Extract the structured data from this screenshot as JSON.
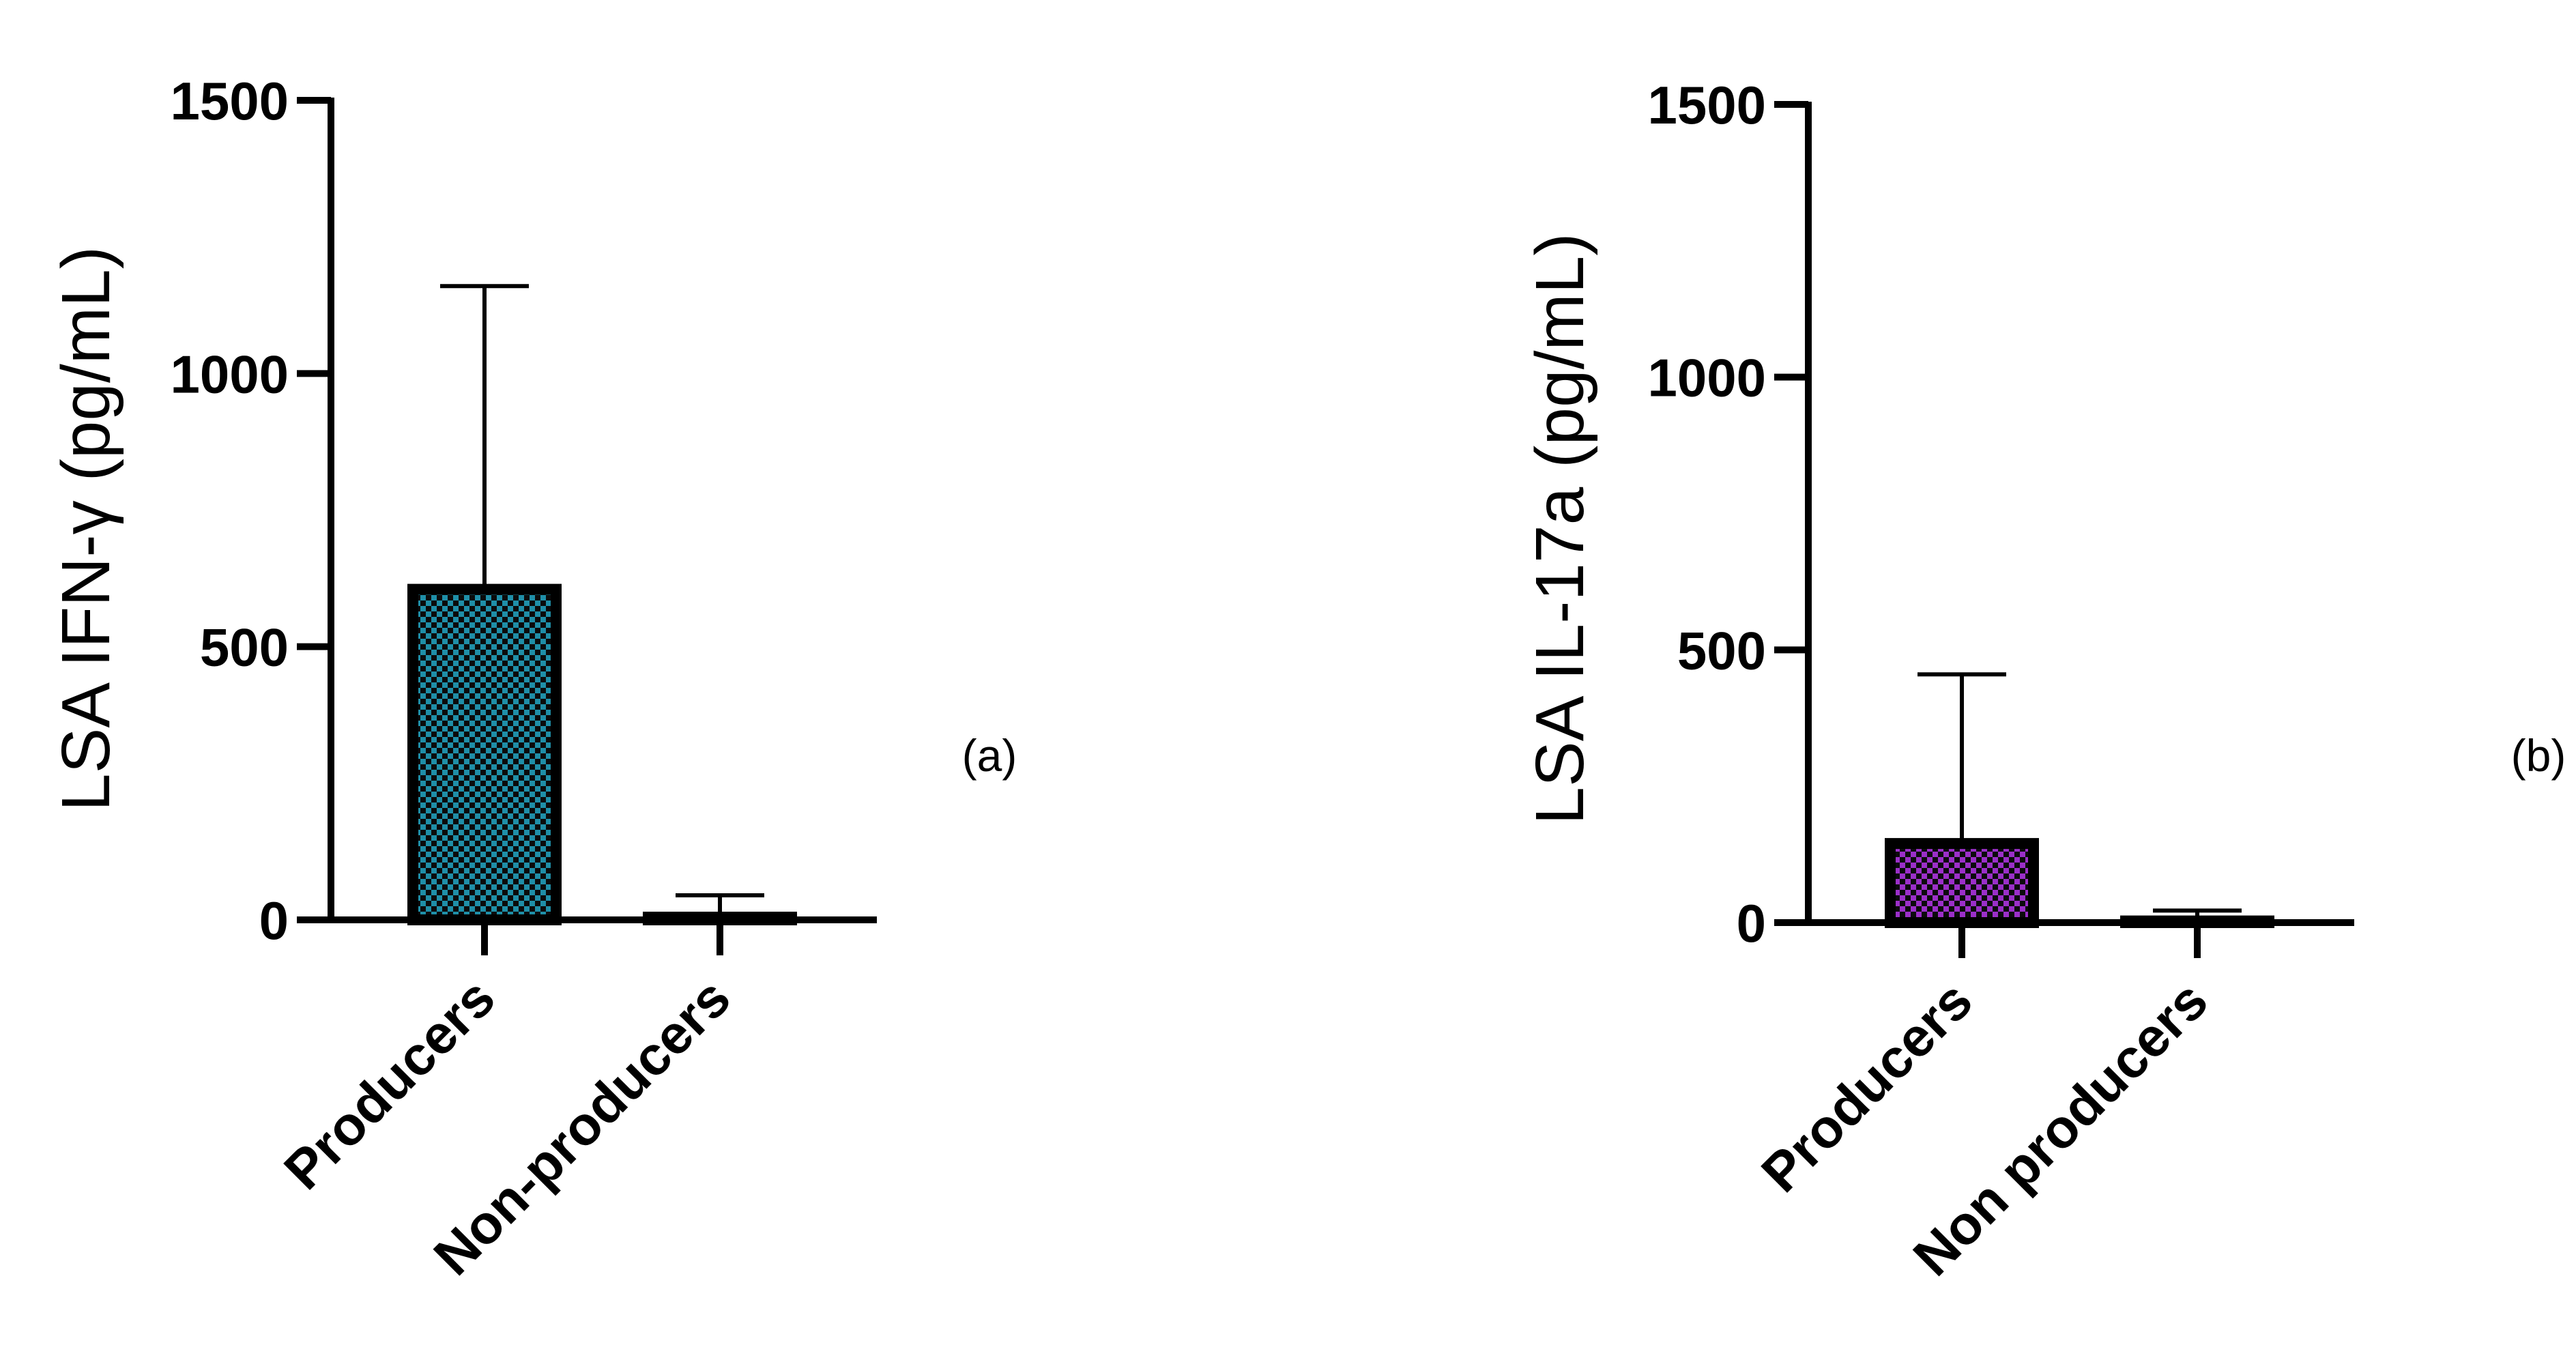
{
  "chart_data": [
    {
      "type": "bar",
      "panel_label": "(a)",
      "ylabel": "LSA IFN-γ (pg/mL)",
      "xlabel": "",
      "categories": [
        "Producers",
        "Non-producers"
      ],
      "values": [
        605,
        5
      ],
      "error_upper": [
        1160,
        45
      ],
      "ylim": [
        0,
        1500
      ],
      "yticks": [
        0,
        500,
        1000,
        1500
      ],
      "bar_color": "#1f8fa8",
      "pattern": "checkerboard",
      "grid": false,
      "legend": "none"
    },
    {
      "type": "bar",
      "panel_label": "(b)",
      "ylabel": "LSA IL-17a (pg/mL)",
      "xlabel": "",
      "categories": [
        "Producers",
        "Non producers"
      ],
      "values": [
        145,
        3
      ],
      "error_upper": [
        455,
        22
      ],
      "ylim": [
        0,
        1500
      ],
      "yticks": [
        0,
        500,
        1000,
        1500
      ],
      "bar_color": "#9b2fc9",
      "pattern": "checkerboard",
      "grid": false,
      "legend": "none"
    }
  ]
}
